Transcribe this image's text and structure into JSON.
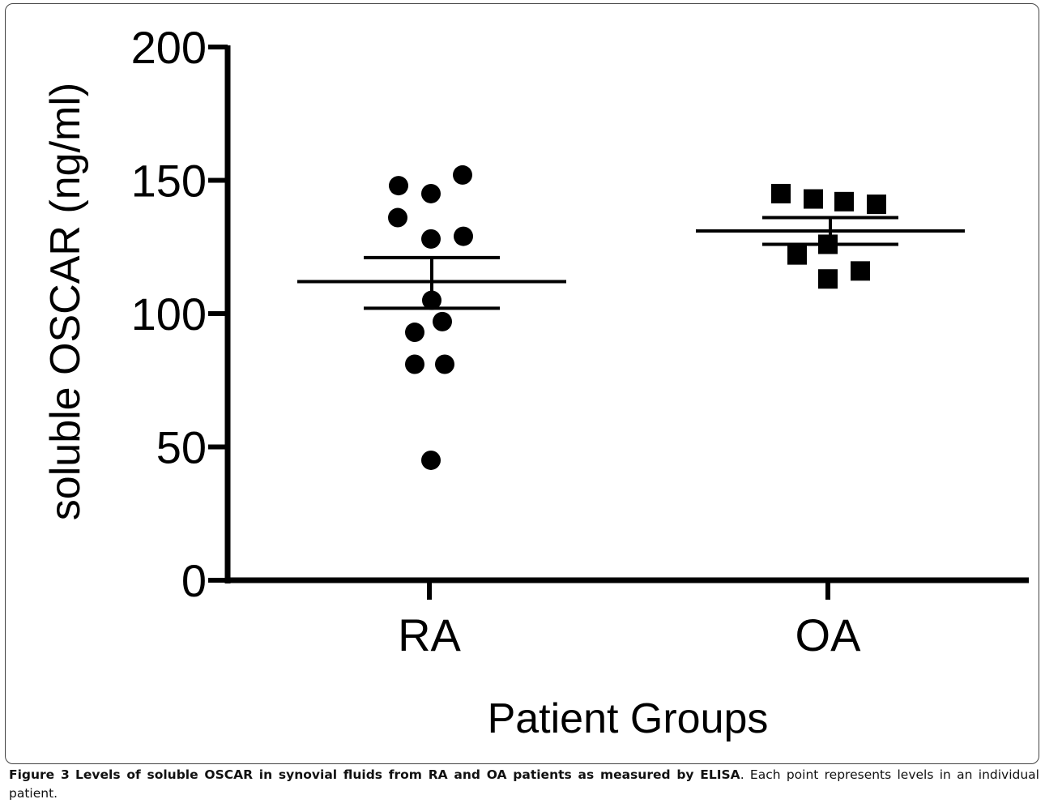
{
  "chart_data": {
    "type": "scatter",
    "xlabel": "Patient Groups",
    "ylabel": "soluble OSCAR (ng/ml)",
    "ylim": [
      0,
      200
    ],
    "yticks": [
      0,
      50,
      100,
      150,
      200
    ],
    "categories": [
      "RA",
      "OA"
    ],
    "series": [
      {
        "category": "RA",
        "marker": "circle",
        "values": [
          152,
          148,
          145,
          136,
          129,
          128,
          105,
          97,
          93,
          81,
          81,
          45
        ],
        "mean": 112,
        "sem": [
          102,
          121
        ]
      },
      {
        "category": "OA",
        "marker": "square",
        "values": [
          145,
          143,
          142,
          141,
          126,
          122,
          116,
          113
        ],
        "mean": 131,
        "sem": [
          126,
          136
        ]
      }
    ]
  },
  "caption": {
    "label": "Figure 3",
    "title": "Levels of soluble OSCAR in synovial fluids from RA and OA patients as measured by ELISA",
    "text": ". Each point represents levels in an individual patient."
  }
}
